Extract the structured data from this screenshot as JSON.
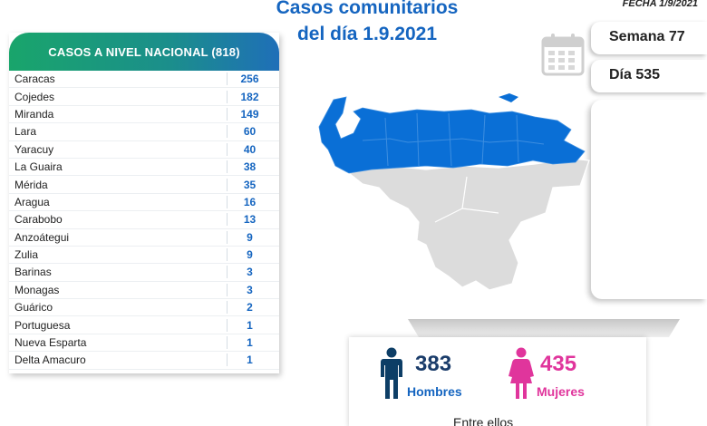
{
  "header": {
    "title_line1": "Casos comunitarios",
    "title_line2": "del día 1.9.2021",
    "fecha": "FECHA 1/9/2021"
  },
  "badges": {
    "semana": "Semana 77",
    "dia": "Día 535"
  },
  "national_table": {
    "title": "CASOS A NIVEL NACIONAL (818)",
    "rows": [
      {
        "state": "Caracas",
        "cases": "256"
      },
      {
        "state": "Cojedes",
        "cases": "182"
      },
      {
        "state": "Miranda",
        "cases": "149"
      },
      {
        "state": "Lara",
        "cases": "60"
      },
      {
        "state": "Yaracuy",
        "cases": "40"
      },
      {
        "state": "La Guaira",
        "cases": "38"
      },
      {
        "state": "Mérida",
        "cases": "35"
      },
      {
        "state": "Aragua",
        "cases": "16"
      },
      {
        "state": "Carabobo",
        "cases": "13"
      },
      {
        "state": "Anzoátegui",
        "cases": "9"
      },
      {
        "state": "Zulia",
        "cases": "9"
      },
      {
        "state": "Barinas",
        "cases": "3"
      },
      {
        "state": "Monagas",
        "cases": "3"
      },
      {
        "state": "Guárico",
        "cases": "2"
      },
      {
        "state": "Portuguesa",
        "cases": "1"
      },
      {
        "state": "Nueva Esparta",
        "cases": "1"
      },
      {
        "state": "Delta Amacuro",
        "cases": "1"
      }
    ]
  },
  "gender": {
    "men_count": "383",
    "men_label": "Hombres",
    "women_count": "435",
    "women_label": "Mujeres",
    "footer_text": "Entre ellos"
  },
  "colors": {
    "blue": "#1565c0",
    "map_highlight": "#0a6fd6",
    "map_grey": "#dcdcdc",
    "men": "#0d3e66",
    "women": "#e0359c"
  },
  "icons": {
    "calendar": "calendar-icon",
    "man": "man-icon",
    "woman": "woman-icon"
  }
}
